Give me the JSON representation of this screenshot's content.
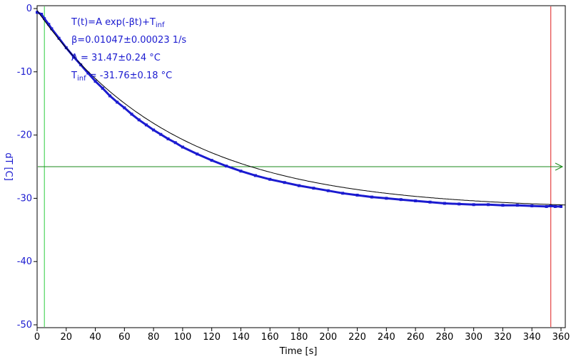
{
  "chart_data": {
    "type": "scatter",
    "xlabel": "Time [s]",
    "ylabel": "dT [C]",
    "xlim": [
      0,
      360
    ],
    "ylim": [
      -50,
      0
    ],
    "xticks": [
      "0",
      "20",
      "40",
      "60",
      "80",
      "100",
      "120",
      "140",
      "160",
      "180",
      "200",
      "220",
      "240",
      "260",
      "280",
      "300",
      "320",
      "340",
      "360"
    ],
    "yticks": [
      "0",
      "-10",
      "-20",
      "-30",
      "-40",
      "-50"
    ],
    "grid": false,
    "fit": {
      "model": "T(t)=A exp(-βt)+T_inf",
      "beta": 0.01047,
      "A": 31.47,
      "T_inf": -31.76,
      "t_start": 0,
      "t_end": 363
    },
    "annotations": {
      "formula_main": "T(t)=A exp(-βt)+T",
      "formula_sub": "inf",
      "beta_line": "β=0.01047±0.00023 1/s",
      "A_line": "A = 31.47±0.24 °C",
      "tinf_main": "T",
      "tinf_sub": "inf",
      "tinf_value": " = -31.76±0.18 °C"
    },
    "series": [
      {
        "x": [
          0,
          3,
          5,
          8,
          10,
          15,
          20,
          25,
          30,
          35,
          40,
          45,
          50,
          55,
          60,
          65,
          70,
          75,
          80,
          85,
          90,
          95,
          100,
          110,
          120,
          130,
          140,
          150,
          160,
          170,
          180,
          190,
          200,
          210,
          220,
          230,
          240,
          250,
          260,
          270,
          280,
          290,
          300,
          310,
          320,
          330,
          340,
          350,
          353,
          356,
          360
        ],
        "y": [
          -0.6,
          -0.9,
          -1.6,
          -2.5,
          -3.2,
          -4.7,
          -6.2,
          -7.6,
          -8.9,
          -10.2,
          -11.5,
          -12.6,
          -13.8,
          -14.8,
          -15.7,
          -16.7,
          -17.6,
          -18.4,
          -19.2,
          -19.9,
          -20.6,
          -21.2,
          -21.9,
          -23.0,
          -24.0,
          -24.9,
          -25.7,
          -26.4,
          -27.0,
          -27.5,
          -28.0,
          -28.4,
          -28.8,
          -29.2,
          -29.5,
          -29.8,
          -30.0,
          -30.2,
          -30.4,
          -30.6,
          -30.8,
          -30.9,
          -31.0,
          -31.0,
          -31.1,
          -31.1,
          -31.2,
          -31.3,
          -31.2,
          -31.3,
          -31.3
        ],
        "color": "#1b1bd0"
      }
    ],
    "markers": {
      "green_vline_x": 5,
      "red_vline_x": 353,
      "hline_y": -25
    },
    "colors": {
      "data": "#1b1bd0",
      "fit": "#000000",
      "axis": "#000000",
      "ylabels": "#1b1bd0",
      "green_line": "#2ecc40",
      "red_line": "#e02020",
      "hline": "#1a8a1a"
    }
  }
}
